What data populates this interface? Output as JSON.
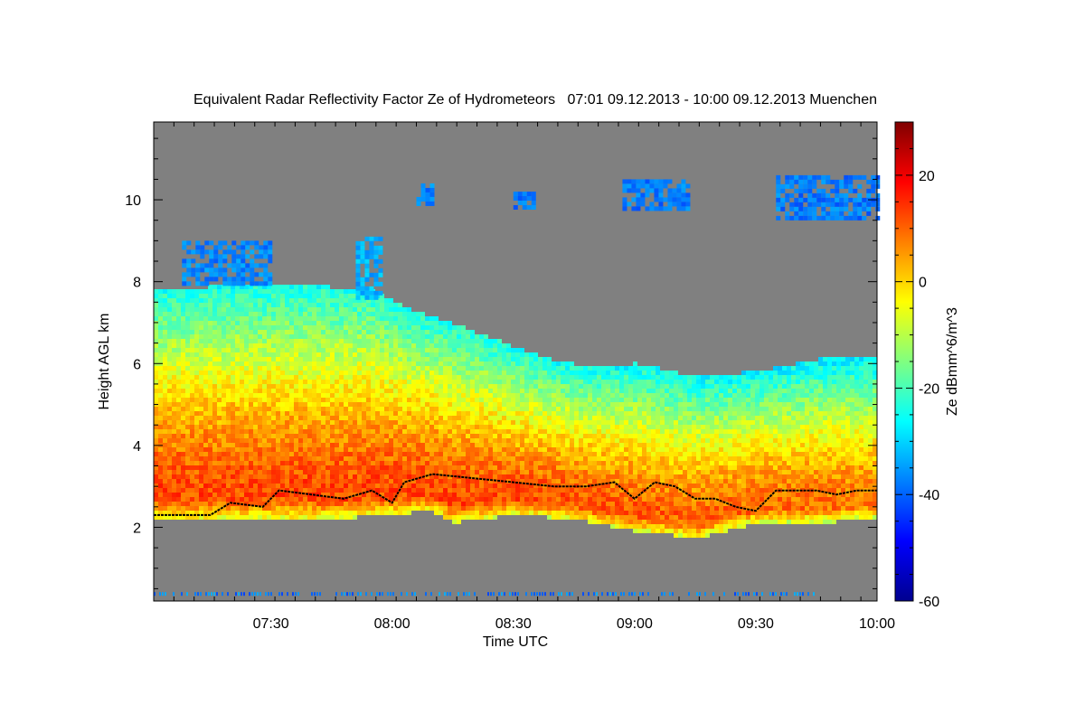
{
  "chart_data": {
    "type": "heatmap",
    "title": "Equivalent Radar Reflectivity Factor Ze of Hydrometeors   07:01 09.12.2013 - 10:00 09.12.2013 Muenchen",
    "xlabel": "Time UTC",
    "ylabel": "Height AGL km",
    "colorbar_label": "Ze dBmm^6/m^3",
    "x_range": [
      "07:01",
      "10:00"
    ],
    "x_ticks": [
      "07:30",
      "08:00",
      "08:30",
      "09:00",
      "09:30",
      "10:00"
    ],
    "y_range_km": [
      0.2,
      11.9
    ],
    "y_ticks": [
      "2",
      "4",
      "6",
      "8",
      "10"
    ],
    "colorbar_range": [
      -60,
      30
    ],
    "colorbar_ticks": [
      "20",
      "0",
      "-20",
      "-40",
      "-60"
    ],
    "colormap": "jet",
    "background_color": "#808080",
    "cloud_layer": {
      "base_km": [
        [
          "07:01",
          2.2
        ],
        [
          "07:30",
          2.2
        ],
        [
          "07:45",
          2.2
        ],
        [
          "08:00",
          2.3
        ],
        [
          "08:10",
          2.4
        ],
        [
          "08:15",
          2.1
        ],
        [
          "08:30",
          2.3
        ],
        [
          "08:45",
          2.2
        ],
        [
          "09:00",
          1.9
        ],
        [
          "09:10",
          1.8
        ],
        [
          "09:15",
          1.7
        ],
        [
          "09:30",
          2.1
        ],
        [
          "09:45",
          2.1
        ],
        [
          "10:00",
          2.2
        ]
      ],
      "top_km": [
        [
          "07:01",
          7.8
        ],
        [
          "07:20",
          7.9
        ],
        [
          "07:40",
          7.9
        ],
        [
          "07:55",
          7.8
        ],
        [
          "08:05",
          7.3
        ],
        [
          "08:15",
          7.0
        ],
        [
          "08:25",
          6.6
        ],
        [
          "08:40",
          6.1
        ],
        [
          "08:50",
          5.9
        ],
        [
          "09:00",
          6.0
        ],
        [
          "09:15",
          5.7
        ],
        [
          "09:30",
          5.8
        ],
        [
          "09:45",
          6.1
        ],
        [
          "10:00",
          6.2
        ]
      ],
      "max_Ze_dBZ": 12,
      "core_top_km": 5.5
    },
    "melting_layer_line_km": [
      [
        "07:01",
        2.3
      ],
      [
        "07:10",
        2.3
      ],
      [
        "07:15",
        2.3
      ],
      [
        "07:20",
        2.6
      ],
      [
        "07:28",
        2.5
      ],
      [
        "07:32",
        2.9
      ],
      [
        "07:40",
        2.8
      ],
      [
        "07:48",
        2.7
      ],
      [
        "07:55",
        2.9
      ],
      [
        "08:00",
        2.6
      ],
      [
        "08:03",
        3.1
      ],
      [
        "08:10",
        3.3
      ],
      [
        "08:20",
        3.2
      ],
      [
        "08:30",
        3.1
      ],
      [
        "08:40",
        3.0
      ],
      [
        "08:48",
        3.0
      ],
      [
        "08:55",
        3.1
      ],
      [
        "09:00",
        2.7
      ],
      [
        "09:05",
        3.1
      ],
      [
        "09:10",
        3.0
      ],
      [
        "09:15",
        2.7
      ],
      [
        "09:20",
        2.7
      ],
      [
        "09:25",
        2.5
      ],
      [
        "09:30",
        2.4
      ],
      [
        "09:35",
        2.9
      ],
      [
        "09:40",
        2.9
      ],
      [
        "09:45",
        2.9
      ],
      [
        "09:50",
        2.8
      ],
      [
        "09:55",
        2.9
      ],
      [
        "10:00",
        2.9
      ]
    ],
    "upper_cloud_patches": [
      {
        "t_start": "07:08",
        "t_end": "07:30",
        "base_km": 8.0,
        "top_km": 9.0,
        "Ze_dBZ": -37
      },
      {
        "t_start": "07:51",
        "t_end": "07:57",
        "base_km": 7.6,
        "top_km": 9.1,
        "Ze_dBZ": -33
      },
      {
        "t_start": "08:06",
        "t_end": "08:10",
        "base_km": 9.9,
        "top_km": 10.4,
        "Ze_dBZ": -37
      },
      {
        "t_start": "08:30",
        "t_end": "08:35",
        "base_km": 9.8,
        "top_km": 10.2,
        "Ze_dBZ": -38
      },
      {
        "t_start": "08:57",
        "t_end": "09:13",
        "base_km": 9.8,
        "top_km": 10.5,
        "Ze_dBZ": -38
      },
      {
        "t_start": "09:35",
        "t_end": "10:00",
        "base_km": 9.5,
        "top_km": 10.6,
        "Ze_dBZ": -38
      }
    ],
    "near_ground_clutter": {
      "height_km": 0.35,
      "Ze_dBZ": -38
    }
  }
}
